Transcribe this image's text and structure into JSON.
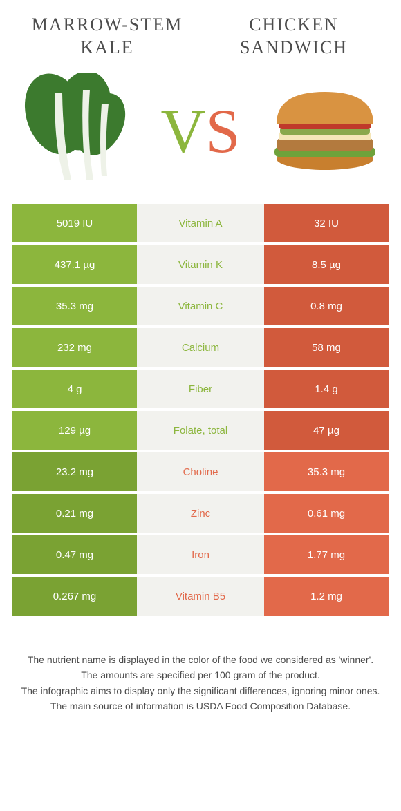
{
  "colors": {
    "left": "#8cb63d",
    "right": "#e2694a",
    "left_dark": "#7aa233",
    "right_dark": "#d15a3c"
  },
  "header": {
    "left_title": "MARROW-STEM KALE",
    "right_title": "CHICKEN SANDWICH",
    "vs_v": "V",
    "vs_s": "S"
  },
  "rows": [
    {
      "nutrient": "Vitamin A",
      "left": "5019 IU",
      "right": "32 IU",
      "winner": "left"
    },
    {
      "nutrient": "Vitamin K",
      "left": "437.1 µg",
      "right": "8.5 µg",
      "winner": "left"
    },
    {
      "nutrient": "Vitamin C",
      "left": "35.3 mg",
      "right": "0.8 mg",
      "winner": "left"
    },
    {
      "nutrient": "Calcium",
      "left": "232 mg",
      "right": "58 mg",
      "winner": "left"
    },
    {
      "nutrient": "Fiber",
      "left": "4 g",
      "right": "1.4 g",
      "winner": "left"
    },
    {
      "nutrient": "Folate, total",
      "left": "129 µg",
      "right": "47 µg",
      "winner": "left"
    },
    {
      "nutrient": "Choline",
      "left": "23.2 mg",
      "right": "35.3 mg",
      "winner": "right"
    },
    {
      "nutrient": "Zinc",
      "left": "0.21 mg",
      "right": "0.61 mg",
      "winner": "right"
    },
    {
      "nutrient": "Iron",
      "left": "0.47 mg",
      "right": "1.77 mg",
      "winner": "right"
    },
    {
      "nutrient": "Vitamin B5",
      "left": "0.267 mg",
      "right": "1.2 mg",
      "winner": "right"
    }
  ],
  "footer": {
    "line1": "The nutrient name is displayed in the color of the food we considered as 'winner'.",
    "line2": "The amounts are specified per 100 gram of the product.",
    "line3": "The infographic aims to display only the significant differences, ignoring minor ones.",
    "line4": "The main source of information is USDA Food Composition Database."
  }
}
